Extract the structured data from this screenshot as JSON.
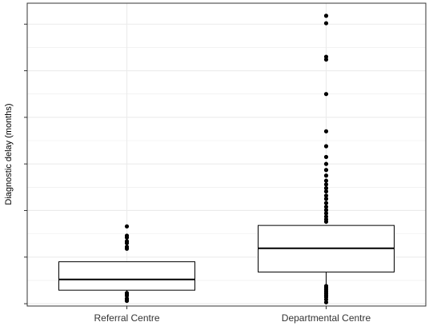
{
  "chart_data": {
    "type": "box",
    "title": "",
    "xlabel": "",
    "ylabel": "Diagnostic delay (months)",
    "y_tick_labels_shown": false,
    "grid": true,
    "categories": [
      "Referral Centre",
      "Departmental Centre"
    ],
    "boxes": [
      {
        "category": "Referral Centre",
        "whisker_low": 1.3,
        "q1": 2.9,
        "median": 5.2,
        "q3": 9.0,
        "whisker_high": 9.0,
        "outliers": [
          0.6,
          0.9,
          1.1,
          1.7,
          2.0,
          2.3,
          11.8,
          12.2,
          13.0,
          13.4,
          14.2,
          14.6,
          16.6
        ]
      },
      {
        "category": "Departmental Centre",
        "whisker_low": 4.0,
        "q1": 6.8,
        "median": 11.9,
        "q3": 16.8,
        "whisker_high": 16.8,
        "outliers": [
          0.3,
          0.9,
          1.4,
          1.8,
          2.2,
          2.6,
          3.0,
          3.4,
          3.8,
          17.6,
          18.1,
          18.7,
          19.4,
          20.1,
          20.8,
          21.6,
          22.5,
          23.2,
          24.1,
          24.8,
          25.6,
          26.4,
          27.5,
          28.7,
          30.0,
          31.5,
          33.8,
          37.0,
          45.0,
          52.4,
          53.0,
          60.2,
          61.8
        ]
      }
    ],
    "ylim": [
      -0.5,
      64.5
    ],
    "ygrid_major": [
      0,
      10,
      20,
      30,
      40,
      50,
      60
    ],
    "ygrid_minor": [
      5,
      15,
      25,
      35,
      45,
      55
    ],
    "colors": {
      "box_fill": "#ffffff",
      "box_line": "#000000",
      "points": "#000000",
      "grid": "#ebebeb",
      "panel_border": "#333333"
    }
  }
}
